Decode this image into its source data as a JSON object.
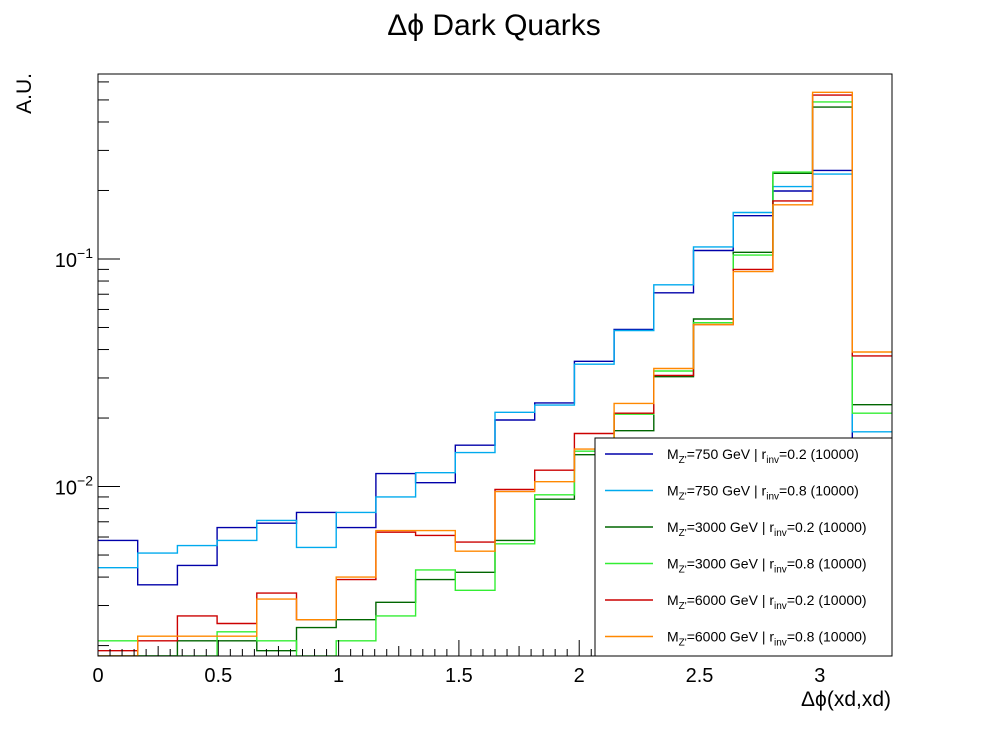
{
  "chart_data": {
    "type": "line",
    "title": "Δϕ Dark Quarks",
    "xlabel": "Δϕ(xd,xd)",
    "ylabel": "A.U.",
    "x_scale": "linear",
    "y_scale": "log",
    "xlim": [
      0,
      3.3
    ],
    "ylim": [
      0.0018,
      0.65
    ],
    "x_ticks": [
      {
        "value": 0,
        "label": "0"
      },
      {
        "value": 0.5,
        "label": "0.5"
      },
      {
        "value": 1,
        "label": "1"
      },
      {
        "value": 1.5,
        "label": "1.5"
      },
      {
        "value": 2,
        "label": "2"
      },
      {
        "value": 2.5,
        "label": "2.5"
      },
      {
        "value": 3,
        "label": "3"
      }
    ],
    "y_ticks": [
      {
        "value": 0.01,
        "label_base": "10",
        "label_exp": "−2"
      },
      {
        "value": 0.1,
        "label_base": "10",
        "label_exp": "−1"
      }
    ],
    "grid": false,
    "legend_position": "bottom-right",
    "bin_edges": [
      0,
      0.165,
      0.33,
      0.495,
      0.66,
      0.825,
      0.99,
      1.155,
      1.32,
      1.485,
      1.65,
      1.815,
      1.98,
      2.145,
      2.31,
      2.475,
      2.64,
      2.805,
      2.97,
      3.135,
      3.3
    ],
    "series": [
      {
        "name": "750 GeV 0.2",
        "legend": {
          "pre": "M",
          "sub1": "Z'",
          "mid": "=750 GeV | r",
          "sub2": "inv",
          "post": "=0.2 (10000)"
        },
        "color": "#0000aa",
        "values": [
          0.0058,
          0.0037,
          0.0045,
          0.0066,
          0.0069,
          0.0077,
          0.0066,
          0.0114,
          0.0104,
          0.0152,
          0.0196,
          0.0233,
          0.0355,
          0.049,
          0.071,
          0.109,
          0.155,
          0.199,
          0.245,
          0.0106
        ]
      },
      {
        "name": "750 GeV 0.8",
        "legend": {
          "pre": "M",
          "sub1": "Z'",
          "mid": "=750 GeV | r",
          "sub2": "inv",
          "post": "=0.8 (10000)"
        },
        "color": "#00aaee",
        "values": [
          0.0044,
          0.0051,
          0.0055,
          0.0058,
          0.0071,
          0.0054,
          0.0077,
          0.009,
          0.0115,
          0.0141,
          0.0212,
          0.0228,
          0.0345,
          0.0485,
          0.077,
          0.113,
          0.16,
          0.208,
          0.236,
          0.0174
        ]
      },
      {
        "name": "3000 GeV 0.2",
        "legend": {
          "pre": "M",
          "sub1": "Z'",
          "mid": "=3000 GeV | r",
          "sub2": "inv",
          "post": "=0.2 (10000)"
        },
        "color": "#006600",
        "values": [
          0.0017,
          0.0017,
          0.0021,
          0.0021,
          0.0019,
          0.0024,
          0.0026,
          0.0031,
          0.0039,
          0.0042,
          0.0058,
          0.0088,
          0.0138,
          0.0176,
          0.0304,
          0.0545,
          0.107,
          0.238,
          0.465,
          0.0229
        ]
      },
      {
        "name": "3000 GeV 0.8",
        "legend": {
          "pre": "M",
          "sub1": "Z'",
          "mid": "=3000 GeV | r",
          "sub2": "inv",
          "post": "=0.8 (10000)"
        },
        "color": "#33ee33",
        "values": [
          0.0021,
          0.0017,
          0.0016,
          0.0023,
          0.0021,
          0.0016,
          0.0021,
          0.0027,
          0.0043,
          0.0035,
          0.0056,
          0.0092,
          0.0143,
          0.0208,
          0.0322,
          0.0525,
          0.104,
          0.241,
          0.49,
          0.021
        ]
      },
      {
        "name": "6000 GeV 0.2",
        "legend": {
          "pre": "M",
          "sub1": "Z'",
          "mid": "=6000 GeV | r",
          "sub2": "inv",
          "post": "=0.2 (10000)"
        },
        "color": "#cc0000",
        "values": [
          0.0019,
          0.0021,
          0.0027,
          0.0025,
          0.0034,
          0.0026,
          0.0039,
          0.0063,
          0.0061,
          0.0057,
          0.0097,
          0.0118,
          0.0171,
          0.021,
          0.0308,
          0.0515,
          0.09,
          0.18,
          0.525,
          0.0375
        ]
      },
      {
        "name": "6000 GeV 0.8",
        "legend": {
          "pre": "M",
          "sub1": "Z'",
          "mid": "=6000 GeV | r",
          "sub2": "inv",
          "post": "=0.8 (10000)"
        },
        "color": "#ff8800",
        "values": [
          0.0017,
          0.0022,
          0.0022,
          0.0022,
          0.0032,
          0.0026,
          0.004,
          0.0064,
          0.0064,
          0.0052,
          0.0095,
          0.0105,
          0.0146,
          0.0232,
          0.033,
          0.0515,
          0.088,
          0.173,
          0.54,
          0.039
        ]
      }
    ]
  }
}
